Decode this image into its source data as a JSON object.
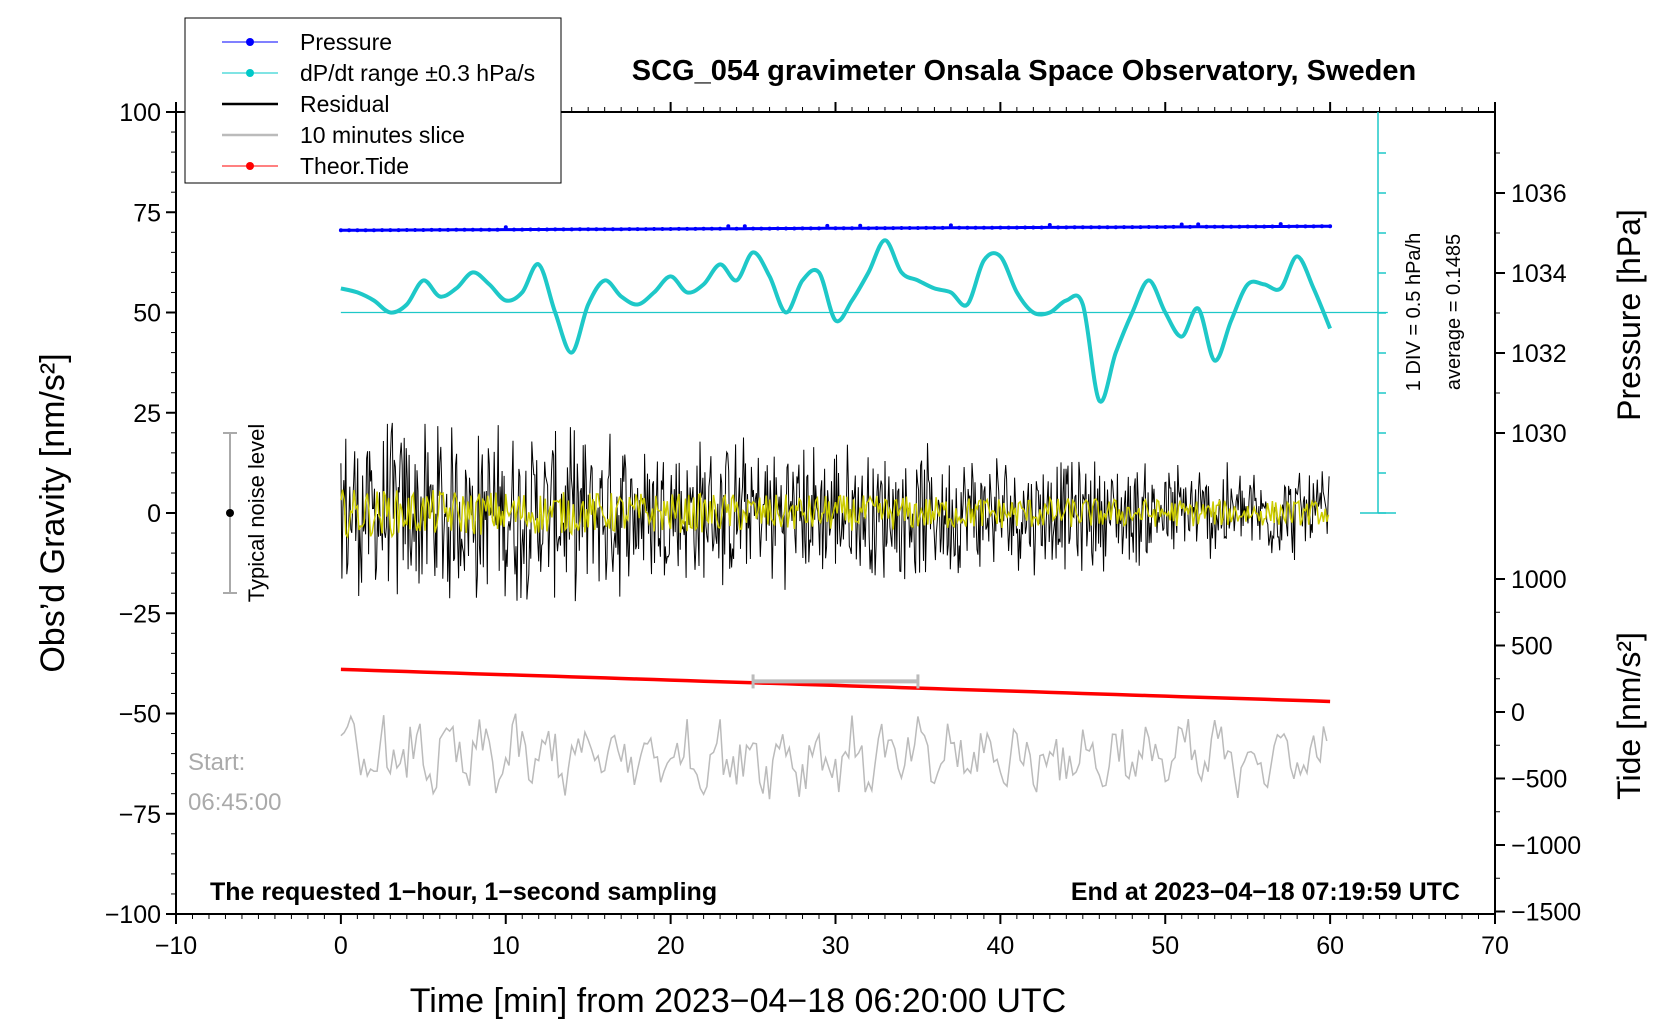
{
  "chart_data": {
    "type": "line",
    "title": "SCG_054 gravimeter Onsala Space Observatory, Sweden",
    "xlabel": "Time [min] from 2023−04−18 06:20:00 UTC",
    "ylabel_left": "Obs’d Gravity [nm/s²]",
    "ylabel_pressure": "Pressure [hPa]",
    "ylabel_tide": "Tide [nm/s²]",
    "xlim": [
      -10,
      70
    ],
    "ylim": [
      -100,
      100
    ],
    "x_ticks": [
      "−10",
      "0",
      "10",
      "20",
      "30",
      "40",
      "50",
      "60",
      "70"
    ],
    "y_ticks": [
      "100",
      "75",
      "50",
      "25",
      "0",
      "−25",
      "−50",
      "−75",
      "−100"
    ],
    "pressure_ticks": [
      "1036",
      "1034",
      "1032",
      "1030"
    ],
    "tide_ticks": [
      "1000",
      "500",
      "0",
      "−500",
      "−1000",
      "−1500"
    ],
    "legend": {
      "position": "top-left",
      "entries": [
        {
          "label": "Pressure",
          "color": "#0000ff",
          "marker": true
        },
        {
          "label": "dP/dt range ±0.3 hPa/s",
          "color": "#00c8c8",
          "marker": true
        },
        {
          "label": "Residual",
          "color": "#000000",
          "marker": false
        },
        {
          "label": "10 minutes slice",
          "color": "#bbbbbb",
          "marker": false
        },
        {
          "label": "Theor.Tide",
          "color": "#ff0000",
          "marker": true
        }
      ]
    },
    "annotations": {
      "noise_label": "Typical noise level",
      "pressure_scale": "1 DIV = 0.5 hPa/h",
      "pressure_average": "average = 0.1485",
      "start_label": "Start:",
      "start_time": "06:45:00",
      "bottom_left": "The requested 1−hour, 1−second sampling",
      "bottom_right": "End at 2023−04−18 07:19:59 UTC"
    },
    "noise_level_range": [
      -20,
      20
    ],
    "slice_bar_minutes": [
      25,
      35
    ],
    "series": [
      {
        "name": "Pressure",
        "color": "#0000ff",
        "x": [
          0,
          60
        ],
        "values": [
          70.5,
          71.5
        ]
      },
      {
        "name": "dP/dt",
        "color": "#1ec8c8",
        "x": [
          0,
          1,
          2,
          3,
          4,
          5,
          6,
          7,
          8,
          9,
          10,
          11,
          12,
          13,
          14,
          15,
          16,
          17,
          18,
          19,
          20,
          21,
          22,
          23,
          24,
          25,
          26,
          27,
          28,
          29,
          30,
          31,
          32,
          33,
          34,
          35,
          36,
          37,
          38,
          39,
          40,
          41,
          42,
          43,
          44,
          45,
          46,
          47,
          48,
          49,
          50,
          51,
          52,
          53,
          54,
          55,
          56,
          57,
          58,
          59,
          60
        ],
        "values": [
          56,
          55,
          53,
          50,
          52,
          58,
          54,
          56,
          60,
          57,
          53,
          55,
          62,
          50,
          40,
          52,
          58,
          54,
          52,
          55,
          59,
          55,
          57,
          62,
          58,
          65,
          59,
          50,
          58,
          60,
          48,
          53,
          60,
          68,
          60,
          58,
          56,
          55,
          52,
          63,
          64,
          55,
          50,
          50,
          53,
          52,
          28,
          40,
          50,
          58,
          50,
          44,
          51,
          38,
          48,
          57,
          57,
          56,
          64,
          56,
          46
        ]
      },
      {
        "name": "dP/dt baseline",
        "color": "#1ec8c8",
        "x": [
          0,
          60
        ],
        "values": [
          50,
          50
        ]
      },
      {
        "name": "Residual",
        "color": "#000000",
        "x": [
          0,
          60
        ],
        "envelope_start": 22,
        "envelope_end": 10
      },
      {
        "name": "Residual (filtered)",
        "color": "#cccc00",
        "x": [
          0,
          60
        ],
        "envelope_start": 6,
        "envelope_end": 3
      },
      {
        "name": "10 minutes slice",
        "color": "#bbbbbb",
        "x": [
          0,
          60
        ],
        "center": -61,
        "amplitude": 10
      },
      {
        "name": "Theor.Tide",
        "color": "#ff0000",
        "x": [
          0,
          60
        ],
        "values": [
          -39,
          -47
        ]
      }
    ]
  }
}
